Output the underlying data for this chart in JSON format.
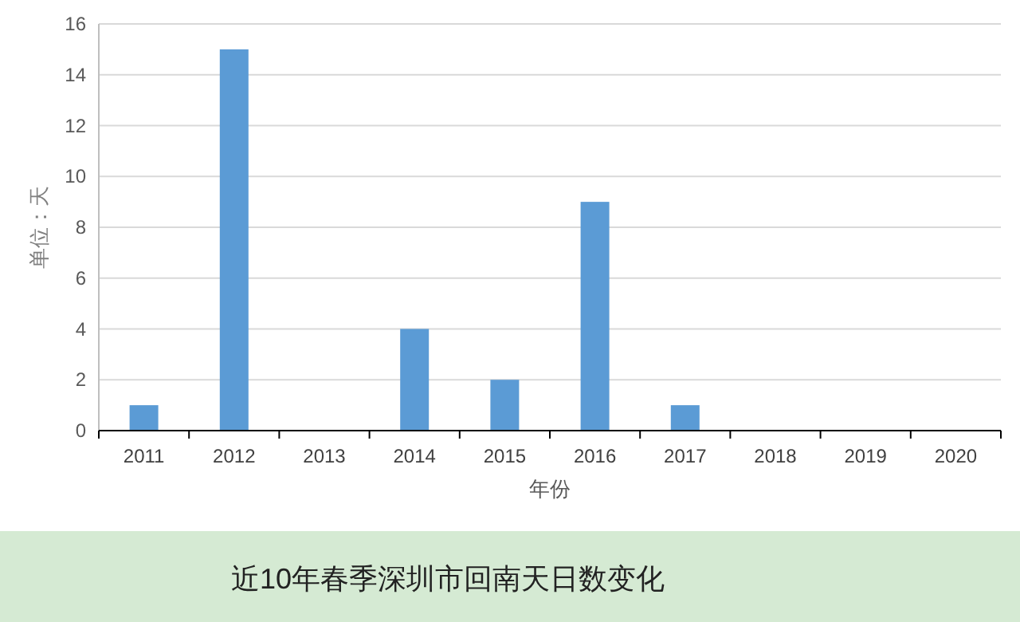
{
  "chart_data": {
    "type": "bar",
    "title": "近10年春季深圳市回南天日数变化",
    "xlabel": "年份",
    "ylabel": "单位：天",
    "categories": [
      "2011",
      "2012",
      "2013",
      "2014",
      "2015",
      "2016",
      "2017",
      "2018",
      "2019",
      "2020"
    ],
    "series": [
      {
        "color": "#5b9bd5",
        "values": [
          1,
          15,
          0,
          4,
          2,
          9,
          1,
          0,
          0,
          0
        ]
      }
    ],
    "ylim": [
      0,
      16
    ],
    "yticks": [
      0,
      2,
      4,
      6,
      8,
      10,
      12,
      14,
      16
    ],
    "grid": "y"
  }
}
